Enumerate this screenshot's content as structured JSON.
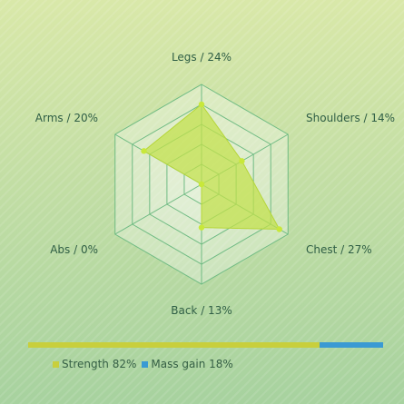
{
  "chart_data": {
    "type": "radar",
    "title": "",
    "max": 30,
    "axes": [
      {
        "label": "Legs / 24%",
        "value": 24
      },
      {
        "label": "Shoulders / 14%",
        "value": 14
      },
      {
        "label": "Chest / 27%",
        "value": 27
      },
      {
        "label": "Back / 13%",
        "value": 13
      },
      {
        "label": "Abs / 0%",
        "value": 0
      },
      {
        "label": "Arms / 20%",
        "value": 20
      }
    ],
    "rings": 5,
    "fill_color": "#c2e04a",
    "grid_color": "#6fbb83",
    "split": {
      "type": "stacked-bar",
      "segments": [
        {
          "label": "Strength 82%",
          "value": 82,
          "color": "#c8cf3c"
        },
        {
          "label": "Mass gain 18%",
          "value": 18,
          "color": "#3a9ad3"
        }
      ]
    }
  }
}
